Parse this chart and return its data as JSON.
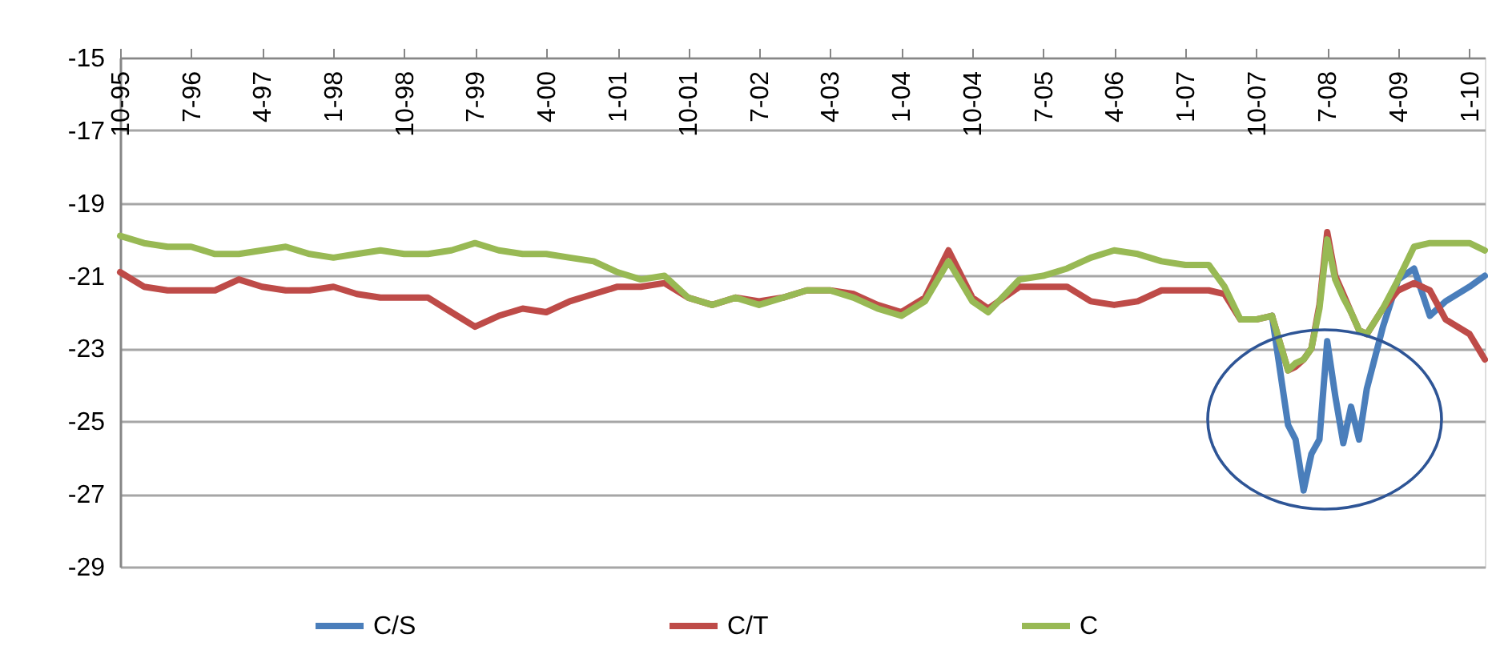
{
  "chart_data": {
    "type": "line",
    "x": [
      "1995-10",
      "1996-01",
      "1996-04",
      "1996-07",
      "1996-10",
      "1997-01",
      "1997-04",
      "1997-07",
      "1997-10",
      "1998-01",
      "1998-04",
      "1998-07",
      "1998-10",
      "1999-01",
      "1999-04",
      "1999-07",
      "1999-10",
      "2000-01",
      "2000-04",
      "2000-07",
      "2000-10",
      "2001-01",
      "2001-04",
      "2001-07",
      "2001-10",
      "2002-01",
      "2002-04",
      "2002-07",
      "2002-10",
      "2003-01",
      "2003-04",
      "2003-07",
      "2003-10",
      "2004-01",
      "2004-04",
      "2004-07",
      "2004-10",
      "2004-12",
      "2005-04",
      "2005-07",
      "2005-10",
      "2006-01",
      "2006-04",
      "2006-07",
      "2006-10",
      "2007-01",
      "2007-04",
      "2007-06",
      "2007-08",
      "2007-10",
      "2007-12",
      "2008-02",
      "2008-03",
      "2008-04",
      "2008-05",
      "2008-06",
      "2008-07",
      "2008-08",
      "2008-09",
      "2008-10",
      "2008-11",
      "2008-12",
      "2009-02",
      "2009-04",
      "2009-06",
      "2009-08",
      "2009-10",
      "2010-01",
      "2010-03"
    ],
    "series": [
      {
        "name": "C/S",
        "color": "#4a7ebb",
        "values": [
          null,
          null,
          null,
          null,
          null,
          null,
          null,
          null,
          null,
          null,
          null,
          null,
          null,
          null,
          null,
          null,
          null,
          null,
          null,
          null,
          null,
          null,
          null,
          null,
          null,
          null,
          null,
          null,
          null,
          null,
          null,
          null,
          null,
          null,
          null,
          null,
          null,
          null,
          null,
          null,
          null,
          null,
          null,
          null,
          null,
          null,
          null,
          null,
          null,
          null,
          -22.1,
          -25.1,
          -25.5,
          -26.9,
          -25.9,
          -25.5,
          -22.8,
          -24.3,
          -25.6,
          -24.6,
          -25.5,
          -24.1,
          -22.4,
          -21.1,
          -20.8,
          -22.1,
          -21.7,
          -21.3,
          -21.0
        ]
      },
      {
        "name": "C/T",
        "color": "#be4b48",
        "values": [
          -20.9,
          -21.3,
          -21.4,
          -21.4,
          -21.4,
          -21.1,
          -21.3,
          -21.4,
          -21.4,
          -21.3,
          -21.5,
          -21.6,
          -21.6,
          -21.6,
          -22.0,
          -22.4,
          -22.1,
          -21.9,
          -22.0,
          -21.7,
          -21.5,
          -21.3,
          -21.3,
          -21.2,
          -21.6,
          -21.8,
          -21.6,
          -21.7,
          -21.6,
          -21.4,
          -21.4,
          -21.5,
          -21.8,
          -22.0,
          -21.6,
          -20.3,
          -21.6,
          -21.9,
          -21.3,
          -21.3,
          -21.3,
          -21.7,
          -21.8,
          -21.7,
          -21.4,
          -21.4,
          -21.4,
          -21.5,
          -22.2,
          -22.2,
          -22.1,
          -23.6,
          -23.5,
          -23.3,
          -23.0,
          -21.8,
          -19.8,
          -21.0,
          -21.5,
          -22.0,
          -22.5,
          -22.6,
          -21.9,
          -21.4,
          -21.2,
          -21.4,
          -22.2,
          -22.6,
          -23.3
        ]
      },
      {
        "name": "C",
        "color": "#98b954",
        "values": [
          -19.9,
          -20.1,
          -20.2,
          -20.2,
          -20.4,
          -20.4,
          -20.3,
          -20.2,
          -20.4,
          -20.5,
          -20.4,
          -20.3,
          -20.4,
          -20.4,
          -20.3,
          -20.1,
          -20.3,
          -20.4,
          -20.4,
          -20.5,
          -20.6,
          -20.9,
          -21.1,
          -21.0,
          -21.6,
          -21.8,
          -21.6,
          -21.8,
          -21.6,
          -21.4,
          -21.4,
          -21.6,
          -21.9,
          -22.1,
          -21.7,
          -20.6,
          -21.7,
          -22.0,
          -21.1,
          -21.0,
          -20.8,
          -20.5,
          -20.3,
          -20.4,
          -20.6,
          -20.7,
          -20.7,
          -21.3,
          -22.2,
          -22.2,
          -22.1,
          -23.6,
          -23.4,
          -23.3,
          -23.0,
          -21.9,
          -20.0,
          -21.1,
          -21.6,
          -22.0,
          -22.5,
          -22.6,
          -21.9,
          -21.1,
          -20.2,
          -20.1,
          -20.1,
          -20.1,
          -20.3
        ]
      }
    ],
    "xlim": [
      "1995-10",
      "2010-03"
    ],
    "xticks": [
      {
        "value": "1995-10",
        "label": "10-95"
      },
      {
        "value": "1996-07",
        "label": "7-96"
      },
      {
        "value": "1997-04",
        "label": "4-97"
      },
      {
        "value": "1998-01",
        "label": "1-98"
      },
      {
        "value": "1998-10",
        "label": "10-98"
      },
      {
        "value": "1999-07",
        "label": "7-99"
      },
      {
        "value": "2000-04",
        "label": "4-00"
      },
      {
        "value": "2001-01",
        "label": "1-01"
      },
      {
        "value": "2001-10",
        "label": "10-01"
      },
      {
        "value": "2002-07",
        "label": "7-02"
      },
      {
        "value": "2003-04",
        "label": "4-03"
      },
      {
        "value": "2004-01",
        "label": "1-04"
      },
      {
        "value": "2004-10",
        "label": "10-04"
      },
      {
        "value": "2005-07",
        "label": "7-05"
      },
      {
        "value": "2006-04",
        "label": "4-06"
      },
      {
        "value": "2007-01",
        "label": "1-07"
      },
      {
        "value": "2007-10",
        "label": "10-07"
      },
      {
        "value": "2008-07",
        "label": "7-08"
      },
      {
        "value": "2009-04",
        "label": "4-09"
      },
      {
        "value": "2010-01",
        "label": "1-10"
      }
    ],
    "ylim": [
      -29,
      -15
    ],
    "yticks": [
      -15,
      -17,
      -19,
      -21,
      -23,
      -25,
      -27,
      -29
    ],
    "grid": "y",
    "legend": "bottom",
    "marker": "none",
    "line_style": "solid"
  }
}
